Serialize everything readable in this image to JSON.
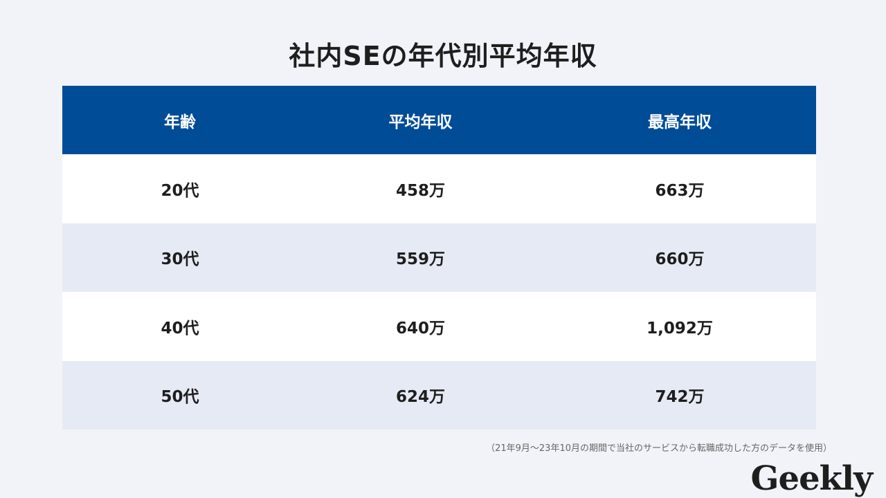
{
  "title": "社内SEの年代別平均年収",
  "table": {
    "headers": [
      "年齢",
      "平均年収",
      "最高年収"
    ],
    "rows": [
      [
        "20代",
        "458万",
        "663万"
      ],
      [
        "30代",
        "559万",
        "660万"
      ],
      [
        "40代",
        "640万",
        "1,092万"
      ],
      [
        "50代",
        "624万",
        "742万"
      ]
    ]
  },
  "note": "（21年9月～23年10月の期間で当社のサービスから転職成功した方のデータを使用）",
  "logo": "Geekly",
  "colors": {
    "header": "#004c97",
    "row_alt": "#e6eaf5",
    "background": "#f2f3f8"
  }
}
